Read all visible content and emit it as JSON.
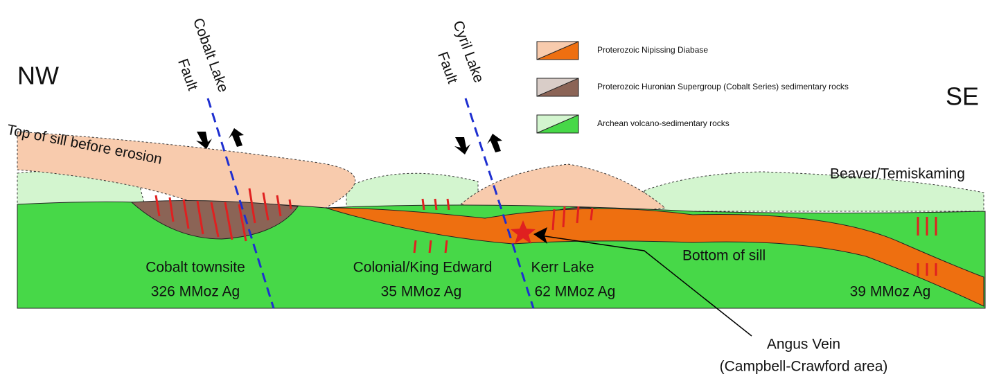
{
  "directions": {
    "left": "NW",
    "right": "SE"
  },
  "faults": [
    {
      "line1": "Cobalt Lake",
      "line2": "Fault"
    },
    {
      "line1": "Cyril Lake",
      "line2": "Fault"
    }
  ],
  "legend": [
    "Proterozoic Nipissing Diabase",
    "Proterozoic Huronian Supergroup (Cobalt Series) sedimentary rocks",
    "Archean volcano-sedimentary rocks"
  ],
  "annotations": {
    "top_of_sill": "Top of sill before erosion",
    "beaver": "Beaver/Temiskaming",
    "bottom_of_sill": "Bottom of sill"
  },
  "deposits": [
    {
      "name": "Cobalt townsite",
      "amount": "326 MMoz Ag"
    },
    {
      "name": "Colonial/King Edward",
      "amount": "35 MMoz Ag"
    },
    {
      "name": "Kerr Lake",
      "amount": "62 MMoz Ag"
    },
    {
      "amount": "39 MMoz Ag"
    }
  ],
  "angus": {
    "line1": "Angus Vein",
    "line2": "(Campbell-Crawford area)"
  }
}
